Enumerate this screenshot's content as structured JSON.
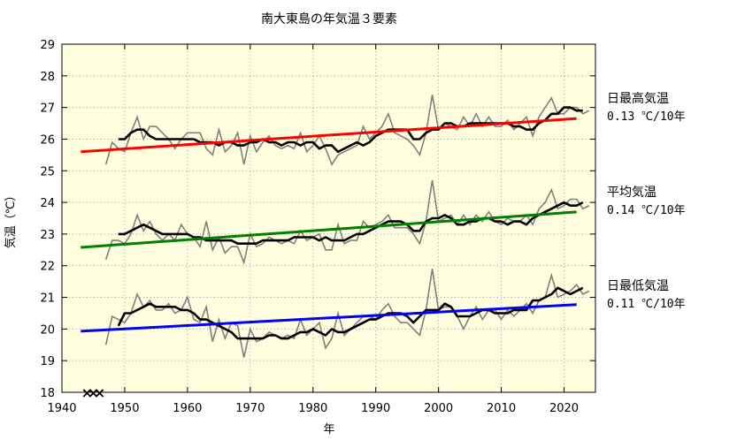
{
  "chart_data": {
    "type": "line",
    "title": "南大東島の年気温３要素",
    "xlabel": "年",
    "ylabel": "気温（℃）",
    "xlim": [
      1940,
      2025
    ],
    "ylim": [
      18,
      29
    ],
    "xticks": [
      1940,
      1950,
      1960,
      1970,
      1980,
      1990,
      2000,
      2010,
      2020
    ],
    "yticks": [
      18,
      19,
      20,
      21,
      22,
      23,
      24,
      25,
      26,
      27,
      28,
      29
    ],
    "background": "#ffffe0",
    "grid": true,
    "missing_marker": {
      "symbol": "×",
      "years": [
        1944,
        1945,
        1946
      ]
    },
    "series": [
      {
        "name": "日最高気温",
        "rate": "0.13 ℃/10年",
        "trend_color": "#ff0000",
        "trend": {
          "x": [
            1943,
            2022
          ],
          "y": [
            25.6,
            26.65
          ]
        },
        "annual": {
          "start": 1947,
          "values": [
            25.2,
            25.9,
            25.7,
            25.6,
            26.2,
            26.7,
            26.0,
            26.4,
            26.4,
            26.2,
            26.0,
            25.7,
            26.0,
            26.2,
            26.2,
            26.2,
            25.7,
            25.5,
            26.3,
            25.6,
            25.8,
            26.2,
            25.2,
            26.1,
            25.6,
            25.9,
            26.1,
            25.8,
            25.7,
            25.8,
            25.7,
            26.2,
            25.6,
            25.8,
            26.1,
            25.7,
            25.2,
            25.5,
            25.6,
            25.7,
            25.8,
            26.4,
            26.0,
            26.2,
            26.4,
            26.8,
            26.2,
            26.1,
            26.0,
            25.8,
            25.5,
            26.2,
            27.4,
            26.3,
            26.5,
            26.4,
            26.3,
            26.7,
            26.4,
            26.8,
            26.4,
            26.7,
            26.4,
            26.4,
            26.6,
            26.3,
            26.5,
            26.7,
            26.1,
            26.7,
            27.0,
            27.3,
            26.8,
            26.8,
            27.0,
            27.0,
            26.8,
            26.9
          ]
        },
        "moving_avg": {
          "start": 1949,
          "values": [
            26.0,
            26.0,
            26.2,
            26.3,
            26.3,
            26.1,
            26.0,
            26.0,
            26.0,
            26.0,
            26.0,
            26.0,
            26.0,
            25.9,
            25.9,
            25.9,
            25.8,
            25.9,
            25.9,
            25.8,
            25.8,
            25.9,
            25.9,
            26.0,
            25.9,
            25.9,
            25.8,
            25.9,
            25.9,
            25.8,
            25.9,
            25.9,
            25.7,
            25.8,
            25.8,
            25.6,
            25.7,
            25.8,
            25.9,
            25.8,
            25.9,
            26.1,
            26.2,
            26.3,
            26.3,
            26.3,
            26.3,
            26.0,
            26.0,
            26.2,
            26.3,
            26.3,
            26.5,
            26.5,
            26.4,
            26.4,
            26.5,
            26.5,
            26.5,
            26.5,
            26.5,
            26.5,
            26.5,
            26.4,
            26.4,
            26.3,
            26.3,
            26.5,
            26.6,
            26.8,
            26.8,
            27.0,
            27.0,
            26.9,
            26.9
          ]
        }
      },
      {
        "name": "平均気温",
        "rate": "0.14 ℃/10年",
        "trend_color": "#008000",
        "trend": {
          "x": [
            1943,
            2022
          ],
          "y": [
            22.58,
            23.7
          ]
        },
        "annual": {
          "start": 1947,
          "values": [
            22.2,
            22.8,
            22.8,
            22.7,
            23.0,
            23.6,
            23.1,
            23.4,
            23.0,
            22.8,
            23.0,
            22.8,
            23.3,
            23.0,
            22.9,
            22.6,
            23.4,
            22.5,
            22.9,
            22.4,
            22.6,
            22.6,
            22.1,
            23.0,
            22.6,
            22.7,
            22.9,
            22.8,
            22.7,
            22.8,
            22.7,
            23.1,
            22.8,
            22.9,
            23.0,
            22.5,
            22.5,
            23.3,
            22.7,
            22.8,
            22.8,
            23.4,
            23.2,
            23.3,
            23.4,
            23.6,
            23.2,
            23.2,
            23.2,
            23.0,
            22.7,
            23.4,
            24.7,
            23.4,
            23.5,
            23.6,
            23.3,
            23.6,
            23.3,
            23.6,
            23.4,
            23.7,
            23.4,
            23.3,
            23.5,
            23.4,
            23.4,
            23.6,
            23.3,
            23.8,
            24.0,
            24.4,
            23.8,
            23.9,
            24.1,
            24.1,
            23.8,
            23.9
          ]
        },
        "moving_avg": {
          "start": 1949,
          "values": [
            23.0,
            23.0,
            23.1,
            23.2,
            23.3,
            23.2,
            23.1,
            23.0,
            23.0,
            23.0,
            23.0,
            23.0,
            22.9,
            22.9,
            22.8,
            22.8,
            22.8,
            22.8,
            22.8,
            22.7,
            22.7,
            22.7,
            22.7,
            22.8,
            22.8,
            22.8,
            22.8,
            22.8,
            22.9,
            22.9,
            22.9,
            22.9,
            22.8,
            22.9,
            22.8,
            22.8,
            22.8,
            22.9,
            23.0,
            23.0,
            23.1,
            23.2,
            23.3,
            23.4,
            23.4,
            23.4,
            23.3,
            23.1,
            23.1,
            23.4,
            23.5,
            23.5,
            23.6,
            23.5,
            23.3,
            23.3,
            23.4,
            23.4,
            23.5,
            23.5,
            23.4,
            23.4,
            23.3,
            23.4,
            23.4,
            23.3,
            23.5,
            23.6,
            23.7,
            23.8,
            23.9,
            24.0,
            23.9,
            23.9,
            24.0
          ]
        }
      },
      {
        "name": "日最低気温",
        "rate": "0.11 ℃/10年",
        "trend_color": "#0000ff",
        "trend": {
          "x": [
            1943,
            2022
          ],
          "y": [
            19.93,
            20.77
          ]
        },
        "annual": {
          "start": 1947,
          "values": [
            19.5,
            20.4,
            20.3,
            20.2,
            20.5,
            21.1,
            20.7,
            20.9,
            20.6,
            20.6,
            20.8,
            20.5,
            20.6,
            21.0,
            20.3,
            20.2,
            20.7,
            19.6,
            20.3,
            19.7,
            20.2,
            20.1,
            19.1,
            20.0,
            19.6,
            19.7,
            19.9,
            19.8,
            19.7,
            19.8,
            19.7,
            20.3,
            19.8,
            20.0,
            20.2,
            19.4,
            19.7,
            20.5,
            19.8,
            20.0,
            20.2,
            20.4,
            20.4,
            20.3,
            20.6,
            20.8,
            20.4,
            20.2,
            20.2,
            20.0,
            19.8,
            20.6,
            21.9,
            20.6,
            20.7,
            20.7,
            20.4,
            20.0,
            20.4,
            20.7,
            20.3,
            20.6,
            20.6,
            20.3,
            20.6,
            20.4,
            20.6,
            20.8,
            20.5,
            20.9,
            21.0,
            21.7,
            21.0,
            21.1,
            21.2,
            21.4,
            21.1,
            21.2
          ]
        },
        "moving_avg": {
          "start": 1949,
          "values": [
            20.1,
            20.5,
            20.5,
            20.6,
            20.7,
            20.8,
            20.7,
            20.7,
            20.7,
            20.7,
            20.6,
            20.6,
            20.5,
            20.3,
            20.3,
            20.2,
            20.1,
            20.0,
            19.9,
            19.7,
            19.7,
            19.7,
            19.7,
            19.7,
            19.8,
            19.8,
            19.7,
            19.7,
            19.8,
            19.9,
            19.9,
            20.0,
            19.9,
            19.8,
            20.0,
            19.9,
            19.9,
            20.0,
            20.1,
            20.2,
            20.3,
            20.3,
            20.4,
            20.5,
            20.5,
            20.5,
            20.4,
            20.2,
            20.4,
            20.6,
            20.6,
            20.6,
            20.8,
            20.7,
            20.4,
            20.4,
            20.4,
            20.5,
            20.6,
            20.6,
            20.5,
            20.5,
            20.5,
            20.6,
            20.6,
            20.6,
            20.9,
            20.9,
            21.0,
            21.1,
            21.3,
            21.2,
            21.1,
            21.2,
            21.3
          ]
        }
      }
    ]
  }
}
